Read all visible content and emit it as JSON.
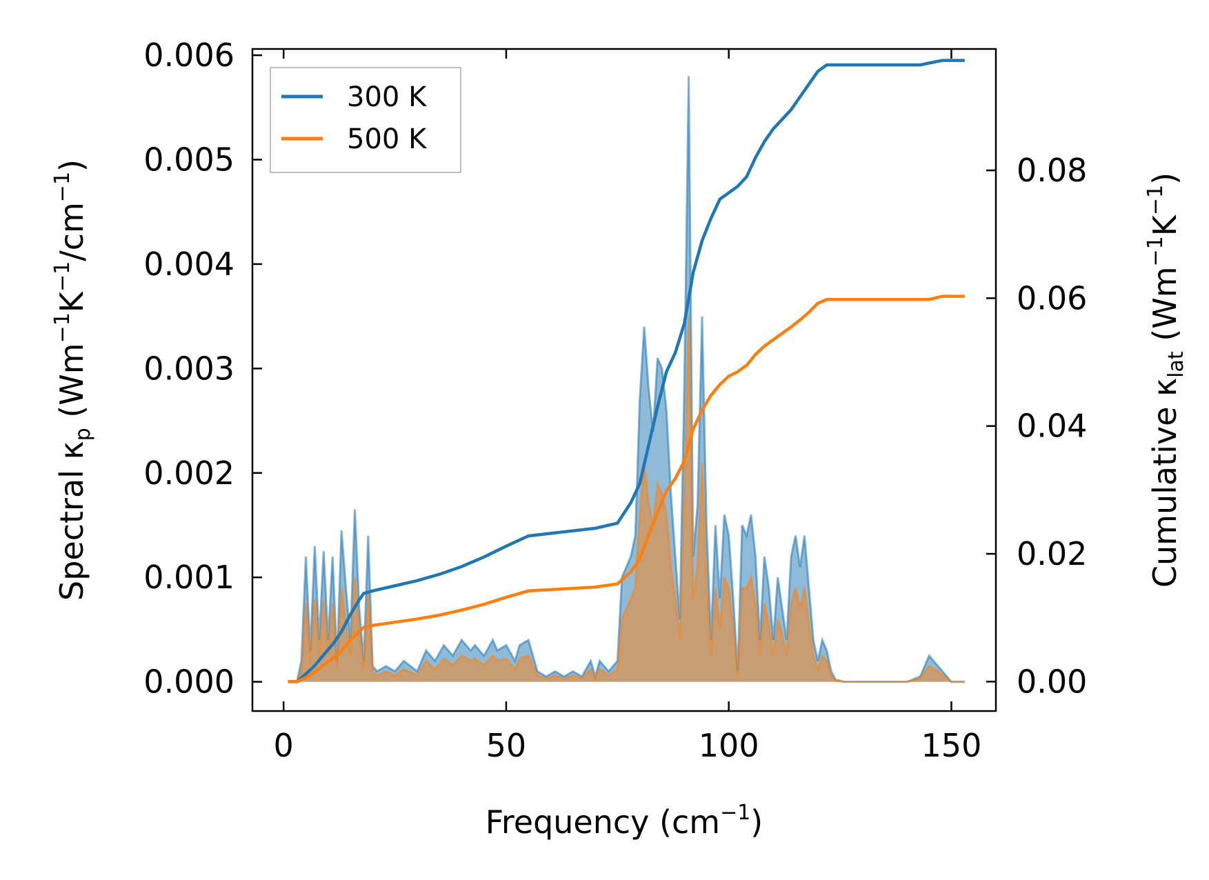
{
  "chart_data": {
    "type": "line",
    "xlabel": "Frequency (cm",
    "xlabel_sup": "−1",
    "xlabel_tail": ")",
    "ylabel_left": {
      "pre": "Spectral κ",
      "sub": "p",
      "mid1": " (Wm",
      "sup1": "−1",
      "mid2": "K",
      "sup2": "−1",
      "mid3": "/cm",
      "sup3": "−1",
      "tail": ")"
    },
    "ylabel_right": {
      "pre": "Cumulative κ",
      "sub": "lat",
      "mid1": " (Wm",
      "sup1": "−1",
      "mid2": "K",
      "sup2": "−1",
      "tail": ")"
    },
    "xlim": [
      -7,
      160
    ],
    "ylim_left": [
      -0.00028,
      0.00606
    ],
    "ylim_right": [
      -0.0046,
      0.099
    ],
    "xticks": [
      0,
      50,
      100,
      150
    ],
    "xtick_labels": [
      "0",
      "50",
      "100",
      "150"
    ],
    "yticks_left": [
      0,
      0.001,
      0.002,
      0.003,
      0.004,
      0.005,
      0.006
    ],
    "ytick_labels_left": [
      "0.000",
      "0.001",
      "0.002",
      "0.003",
      "0.004",
      "0.005",
      "0.006"
    ],
    "yticks_right": [
      0,
      0.02,
      0.04,
      0.06,
      0.08
    ],
    "ytick_labels_right": [
      "0.00",
      "0.02",
      "0.04",
      "0.06",
      "0.08"
    ],
    "legend": {
      "position": "top-left",
      "entries": [
        {
          "label": "300 K",
          "color": "#1f77b4"
        },
        {
          "label": "500 K",
          "color": "#ff7f0e"
        }
      ]
    },
    "spectral_300K": {
      "x": [
        1,
        3,
        4,
        5,
        6,
        7,
        8,
        9,
        10,
        11,
        12,
        13,
        14,
        15,
        16,
        17,
        18,
        19,
        20,
        21,
        23,
        25,
        27,
        30,
        32,
        34,
        36,
        38,
        40,
        42,
        43,
        45,
        47,
        48,
        50,
        52,
        53,
        55,
        57,
        59,
        61,
        63,
        65,
        67,
        69,
        70,
        71,
        73,
        75,
        76,
        78,
        79,
        80,
        81,
        82,
        83,
        84,
        85,
        86,
        87,
        88,
        89,
        90,
        91,
        92,
        93,
        94,
        95,
        96,
        97,
        98,
        99,
        100,
        101,
        102,
        103,
        104,
        105,
        106,
        107,
        108,
        109,
        110,
        111,
        112,
        113,
        114,
        115,
        116,
        117,
        118,
        119,
        120,
        121,
        122,
        123,
        124,
        126,
        130,
        135,
        140,
        143,
        145,
        147,
        148,
        150,
        153
      ],
      "y": [
        0.0,
        0.0,
        0.0002,
        0.0012,
        0.0003,
        0.0013,
        0.0004,
        0.00125,
        0.0004,
        0.0012,
        0.0002,
        0.00145,
        0.0009,
        0.0004,
        0.00165,
        0.0007,
        0.0002,
        0.0014,
        0.00015,
        0.0001,
        0.00015,
        0.0001,
        0.0002,
        0.0001,
        0.0003,
        0.0002,
        0.00035,
        0.00025,
        0.0004,
        0.0003,
        0.00035,
        0.00025,
        0.0004,
        0.0003,
        0.00035,
        0.0002,
        0.00035,
        0.0004,
        0.0001,
        5e-05,
        0.0001,
        5e-05,
        0.0001,
        5e-05,
        0.0002,
        5e-05,
        0.0002,
        0.0001,
        0.0002,
        0.001,
        0.0012,
        0.0014,
        0.0027,
        0.0034,
        0.0028,
        0.0024,
        0.0031,
        0.003,
        0.0026,
        0.0018,
        0.0012,
        0.0006,
        0.0028,
        0.0058,
        0.0012,
        0.0017,
        0.0035,
        0.0015,
        0.0004,
        0.0015,
        0.0008,
        0.0016,
        0.0014,
        0.0008,
        0.0001,
        0.0015,
        0.0014,
        0.0016,
        0.0012,
        0.0004,
        0.0012,
        0.0009,
        0.0004,
        0.001,
        0.0007,
        0.0004,
        0.0012,
        0.0014,
        0.0011,
        0.0014,
        0.0009,
        0.0004,
        0.0002,
        0.0004,
        0.0003,
        0.0001,
        2e-05,
        0.0,
        0.0,
        0.0,
        0.0,
        5e-05,
        0.00025,
        0.00015,
        0.0001,
        0.0,
        0.0
      ]
    },
    "spectral_500K": {
      "x": [
        1,
        3,
        4,
        5,
        6,
        7,
        8,
        9,
        10,
        11,
        12,
        13,
        14,
        15,
        16,
        17,
        18,
        19,
        20,
        21,
        23,
        25,
        27,
        30,
        32,
        34,
        36,
        38,
        40,
        42,
        43,
        45,
        47,
        48,
        50,
        52,
        53,
        55,
        57,
        59,
        61,
        63,
        65,
        67,
        69,
        70,
        71,
        73,
        75,
        76,
        78,
        79,
        80,
        81,
        82,
        83,
        84,
        85,
        86,
        87,
        88,
        89,
        90,
        91,
        92,
        93,
        94,
        95,
        96,
        97,
        98,
        99,
        100,
        101,
        102,
        103,
        104,
        105,
        106,
        107,
        108,
        109,
        110,
        111,
        112,
        113,
        114,
        115,
        116,
        117,
        118,
        119,
        120,
        121,
        122,
        123,
        124,
        126,
        130,
        135,
        140,
        143,
        145,
        147,
        148,
        150,
        153
      ],
      "y": [
        0.0,
        0.0,
        0.0001,
        0.00075,
        0.0002,
        0.0008,
        0.00025,
        0.00078,
        0.00025,
        0.00075,
        0.00012,
        0.0009,
        0.00055,
        0.00025,
        0.001,
        0.00045,
        0.00012,
        0.00085,
        0.0001,
        6e-05,
        0.0001,
        6e-05,
        0.00012,
        6e-05,
        0.0002,
        0.00012,
        0.00022,
        0.00016,
        0.00025,
        0.0002,
        0.00022,
        0.00016,
        0.00025,
        0.0002,
        0.00022,
        0.00012,
        0.00022,
        0.00025,
        6e-05,
        3e-05,
        6e-05,
        3e-05,
        6e-05,
        3e-05,
        0.00012,
        3e-05,
        0.00012,
        6e-05,
        0.00012,
        0.0006,
        0.0008,
        0.0009,
        0.0016,
        0.0021,
        0.0017,
        0.0015,
        0.0019,
        0.0018,
        0.0016,
        0.0011,
        0.0008,
        0.0004,
        0.0017,
        0.0035,
        0.0008,
        0.0011,
        0.0021,
        0.0009,
        0.00025,
        0.0009,
        0.0005,
        0.001,
        0.0009,
        0.0005,
        6e-05,
        0.0009,
        0.0009,
        0.001,
        0.00075,
        0.00025,
        0.00075,
        0.00055,
        0.00025,
        0.0006,
        0.00045,
        0.00025,
        0.00075,
        0.0009,
        0.0007,
        0.0009,
        0.00055,
        0.00025,
        0.00012,
        0.00025,
        0.0002,
        6e-05,
        1e-05,
        0.0,
        0.0,
        0.0,
        0.0,
        3e-05,
        0.00015,
        0.0001,
        6e-05,
        0.0,
        0.0
      ]
    },
    "cumulative_300K": {
      "x": [
        1,
        3,
        5,
        7,
        9,
        11,
        13,
        15,
        17,
        18,
        20,
        25,
        30,
        35,
        40,
        45,
        50,
        55,
        60,
        65,
        70,
        75,
        78,
        80,
        82,
        84,
        86,
        88,
        90,
        92,
        94,
        96,
        98,
        100,
        102,
        104,
        106,
        108,
        110,
        112,
        114,
        116,
        118,
        120,
        122,
        124,
        130,
        135,
        140,
        143,
        145,
        148,
        153
      ],
      "y": [
        0.0,
        0.0,
        0.0012,
        0.0025,
        0.0042,
        0.0058,
        0.0078,
        0.0105,
        0.0128,
        0.0138,
        0.0142,
        0.015,
        0.0158,
        0.0168,
        0.018,
        0.0195,
        0.0212,
        0.0228,
        0.0232,
        0.0236,
        0.024,
        0.0248,
        0.028,
        0.031,
        0.037,
        0.043,
        0.0485,
        0.0515,
        0.056,
        0.064,
        0.069,
        0.0725,
        0.0755,
        0.0765,
        0.0775,
        0.079,
        0.082,
        0.0845,
        0.0865,
        0.088,
        0.0895,
        0.0915,
        0.0935,
        0.0955,
        0.0965,
        0.0965,
        0.0965,
        0.0965,
        0.0965,
        0.0965,
        0.0968,
        0.0972,
        0.0972
      ]
    },
    "cumulative_500K": {
      "x": [
        1,
        3,
        5,
        7,
        9,
        11,
        13,
        15,
        17,
        18,
        20,
        25,
        30,
        35,
        40,
        45,
        50,
        55,
        60,
        65,
        70,
        75,
        78,
        80,
        82,
        84,
        86,
        88,
        90,
        92,
        94,
        96,
        98,
        100,
        102,
        104,
        106,
        108,
        110,
        112,
        114,
        116,
        118,
        120,
        122,
        124,
        130,
        135,
        140,
        143,
        145,
        148,
        153
      ],
      "y": [
        0.0,
        0.0,
        0.0006,
        0.0015,
        0.0026,
        0.0036,
        0.0048,
        0.0065,
        0.0078,
        0.0085,
        0.0088,
        0.0093,
        0.0098,
        0.0104,
        0.0112,
        0.0121,
        0.0132,
        0.0142,
        0.0144,
        0.0146,
        0.0148,
        0.0153,
        0.0172,
        0.0192,
        0.023,
        0.0265,
        0.0298,
        0.0318,
        0.0345,
        0.0395,
        0.0425,
        0.0448,
        0.0465,
        0.0478,
        0.0485,
        0.0495,
        0.0512,
        0.0525,
        0.0535,
        0.0545,
        0.0555,
        0.0566,
        0.0578,
        0.0592,
        0.0598,
        0.0598,
        0.0598,
        0.0598,
        0.0598,
        0.0598,
        0.0598,
        0.0603,
        0.0603
      ]
    },
    "colors": {
      "blue": "#1f77b4",
      "orange": "#ff7f0e",
      "blue_fill": "#1f77b4",
      "orange_fill": "#ff7f0e"
    }
  }
}
